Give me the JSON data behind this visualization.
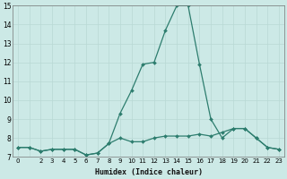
{
  "xlabel": "Humidex (Indice chaleur)",
  "x_values": [
    0,
    1,
    2,
    3,
    4,
    5,
    6,
    7,
    8,
    9,
    10,
    11,
    12,
    13,
    14,
    15,
    16,
    17,
    18,
    19,
    20,
    21,
    22,
    23
  ],
  "line1_y": [
    7.5,
    7.5,
    7.3,
    7.4,
    7.4,
    7.4,
    7.1,
    7.2,
    7.7,
    8.0,
    7.8,
    7.8,
    8.0,
    8.1,
    8.1,
    8.1,
    8.2,
    8.1,
    8.3,
    8.5,
    8.5,
    8.0,
    7.5,
    7.4
  ],
  "line2_y": [
    7.5,
    7.5,
    7.3,
    7.4,
    7.4,
    7.4,
    7.1,
    7.2,
    7.7,
    9.3,
    10.5,
    11.9,
    12.0,
    13.7,
    15.0,
    15.0,
    11.9,
    9.0,
    8.0,
    8.5,
    8.5,
    8.0,
    7.5,
    7.4
  ],
  "line_color": "#2d7d6e",
  "bg_color": "#cce9e6",
  "grid_color": "#b8d8d4",
  "ylim_min": 7,
  "ylim_max": 15,
  "yticks": [
    7,
    8,
    9,
    10,
    11,
    12,
    13,
    14,
    15
  ],
  "xtick_labels": [
    "0",
    "",
    "2",
    "3",
    "4",
    "5",
    "6",
    "7",
    "8",
    "9",
    "10",
    "11",
    "12",
    "13",
    "14",
    "15",
    "16",
    "17",
    "18",
    "19",
    "20",
    "21",
    "22",
    "23"
  ],
  "xlabel_fontsize": 6,
  "ytick_fontsize": 5.5,
  "xtick_fontsize": 5
}
